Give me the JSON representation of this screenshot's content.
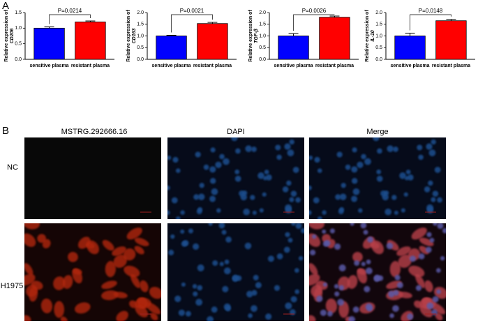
{
  "panel_a_label": "A",
  "chart_data": [
    {
      "type": "bar",
      "ylabel": [
        "Relative expression of",
        "CD206"
      ],
      "categories": [
        "sensitive plasma",
        "resistant plasma"
      ],
      "values": [
        1.0,
        1.2
      ],
      "errors": [
        0.04,
        0.03
      ],
      "colors": [
        "#0000ff",
        "#ff0000"
      ],
      "ylim": [
        0,
        1.5
      ],
      "yticks": [
        {
          "value": 0,
          "label": "0.0"
        },
        0.5,
        {
          "value": 1,
          "label": "1.0"
        },
        1.5
      ],
      "annotation": "P=0.0214"
    },
    {
      "type": "bar",
      "ylabel": [
        "Relative expression of",
        "CD163"
      ],
      "categories": [
        "sensitive plasma",
        "resistant plasma"
      ],
      "values": [
        1.0,
        1.53
      ],
      "errors": [
        0.03,
        0.05
      ],
      "colors": [
        "#0000ff",
        "#ff0000"
      ],
      "ylim": [
        0,
        2
      ],
      "yticks": [
        {
          "value": 0,
          "label": "0.0"
        },
        0.5,
        {
          "value": 1,
          "label": "1.0"
        },
        1.5,
        {
          "value": 2,
          "label": "2.0"
        }
      ],
      "annotation": "P=0.0021"
    },
    {
      "type": "bar",
      "ylabel": [
        "Relative expression of",
        "TGF-β"
      ],
      "categories": [
        "sensitive plasma",
        "resistant plasma"
      ],
      "values": [
        1.0,
        1.8
      ],
      "errors": [
        0.1,
        0.05
      ],
      "colors": [
        "#0000ff",
        "#ff0000"
      ],
      "ylim": [
        0,
        2
      ],
      "yticks": [
        {
          "value": 0,
          "label": "0.0"
        },
        0.5,
        {
          "value": 1,
          "label": "1.0"
        },
        1.5,
        {
          "value": 2,
          "label": "2.0"
        }
      ],
      "annotation": "P=0.0026"
    },
    {
      "type": "bar",
      "ylabel": [
        "Relative expression of",
        "IL-10"
      ],
      "categories": [
        "sensitive plasma",
        "resistant plasma"
      ],
      "values": [
        1.0,
        1.65
      ],
      "errors": [
        0.12,
        0.06
      ],
      "colors": [
        "#0000ff",
        "#ff0000"
      ],
      "ylim": [
        0,
        2
      ],
      "yticks": [
        {
          "value": 0,
          "label": "0.0"
        },
        0.5,
        {
          "value": 1,
          "label": "1.0"
        },
        1.5,
        {
          "value": 2,
          "label": "2.0"
        }
      ],
      "annotation": "P=0.0148"
    }
  ],
  "panel_b": {
    "label": "B",
    "columns": [
      "MSTRG.292666.16",
      "DAPI",
      "Merge"
    ],
    "rows": [
      "NC",
      "H1975"
    ]
  }
}
